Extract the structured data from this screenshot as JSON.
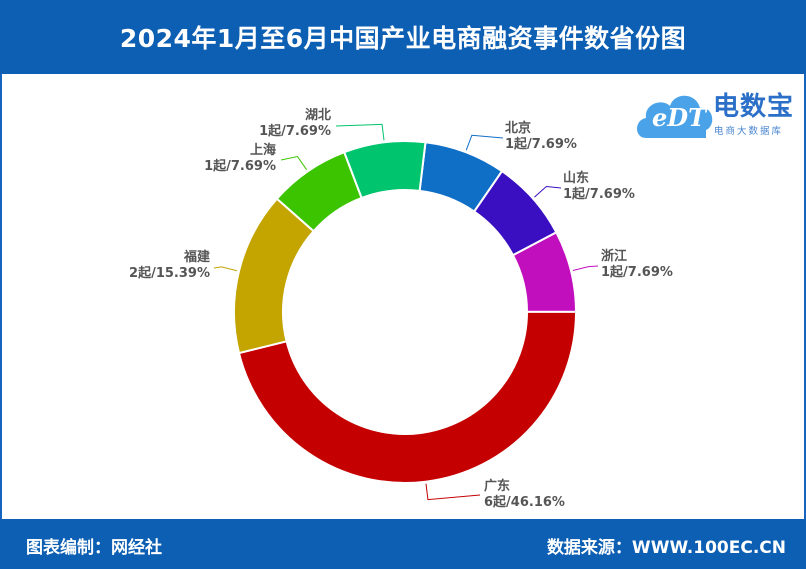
{
  "header": {
    "title": "2024年1月至6月中国产业电商融资事件数省份图"
  },
  "footer": {
    "left": "图表编制：网经社",
    "right": "数据来源：WWW.100EC.CN"
  },
  "logo": {
    "name": "电数宝",
    "subtitle": "电商大数据库",
    "mark": "eDT"
  },
  "colors": {
    "brand": "#0d5fb3"
  },
  "chart_data": {
    "type": "pie",
    "variant": "donut",
    "title": "2024年1月至6月中国产业电商融资事件数省份图",
    "unit": "起",
    "slices": [
      {
        "name": "北京",
        "value": 1,
        "percent": "7.69%",
        "label": "1起/7.69%",
        "color": "#0f6fc6"
      },
      {
        "name": "山东",
        "value": 1,
        "percent": "7.69%",
        "label": "1起/7.69%",
        "color": "#3a0fc2"
      },
      {
        "name": "浙江",
        "value": 1,
        "percent": "7.69%",
        "label": "1起/7.69%",
        "color": "#c20fbd"
      },
      {
        "name": "广东",
        "value": 6,
        "percent": "46.16%",
        "label": "6起/46.16%",
        "color": "#c40000"
      },
      {
        "name": "福建",
        "value": 2,
        "percent": "15.39%",
        "label": "2起/15.39%",
        "color": "#c4a500"
      },
      {
        "name": "上海",
        "value": 1,
        "percent": "7.69%",
        "label": "1起/7.69%",
        "color": "#3cc400"
      },
      {
        "name": "湖北",
        "value": 1,
        "percent": "7.69%",
        "label": "1起/7.69%",
        "color": "#00c46e"
      }
    ]
  }
}
